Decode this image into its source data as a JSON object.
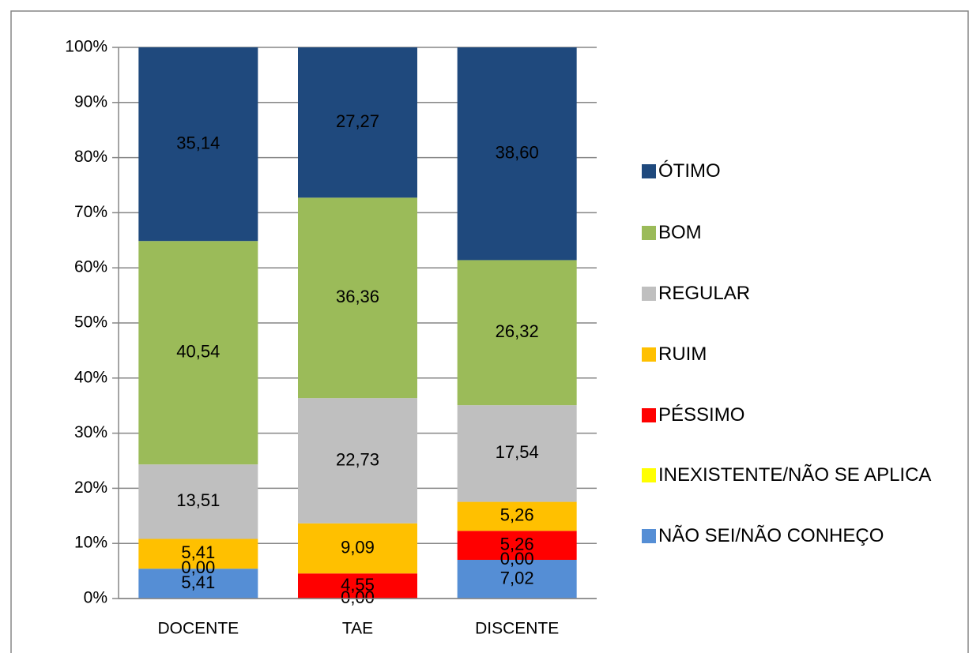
{
  "chart_data": {
    "type": "stacked_bar",
    "categories": [
      "DOCENTE",
      "TAE",
      "DISCENTE"
    ],
    "series": [
      {
        "name": "NÃO SEI/NÃO CONHEÇO",
        "color": "#558ed5",
        "values": [
          5.41,
          0.0,
          7.02
        ],
        "value_labels": [
          "5,41",
          "0,00",
          "7,02"
        ]
      },
      {
        "name": "INEXISTENTE/NÃO SE APLICA",
        "color": "#ffff00",
        "values": [
          0.0,
          null,
          0.0
        ],
        "value_labels": [
          "0,00",
          null,
          "0,00"
        ]
      },
      {
        "name": "PÉSSIMO",
        "color": "#ff0000",
        "values": [
          null,
          4.55,
          5.26
        ],
        "value_labels": [
          null,
          "4,55",
          "5,26"
        ]
      },
      {
        "name": "RUIM",
        "color": "#ffc000",
        "values": [
          5.41,
          9.09,
          5.26
        ],
        "value_labels": [
          "5,41",
          "9,09",
          "5,26"
        ]
      },
      {
        "name": "REGULAR",
        "color": "#bfbfbf",
        "values": [
          13.51,
          22.73,
          17.54
        ],
        "value_labels": [
          "13,51",
          "22,73",
          "17,54"
        ]
      },
      {
        "name": "BOM",
        "color": "#9bbb59",
        "values": [
          40.54,
          36.36,
          26.32
        ],
        "value_labels": [
          "40,54",
          "36,36",
          "26,32"
        ]
      },
      {
        "name": "ÓTIMO",
        "color": "#1f497d",
        "values": [
          35.14,
          27.27,
          38.6
        ],
        "value_labels": [
          "35,14",
          "27,27",
          "38,60"
        ]
      }
    ],
    "ylim": [
      0,
      100
    ],
    "yticks": [
      {
        "value": 0,
        "label": "0%"
      },
      {
        "value": 10,
        "label": "10%"
      },
      {
        "value": 20,
        "label": "20%"
      },
      {
        "value": 30,
        "label": "30%"
      },
      {
        "value": 40,
        "label": "40%"
      },
      {
        "value": 50,
        "label": "50%"
      },
      {
        "value": 60,
        "label": "60%"
      },
      {
        "value": 70,
        "label": "70%"
      },
      {
        "value": 80,
        "label": "80%"
      },
      {
        "value": 90,
        "label": "90%"
      },
      {
        "value": 100,
        "label": "100%"
      }
    ],
    "grid": true,
    "legend": "right"
  }
}
